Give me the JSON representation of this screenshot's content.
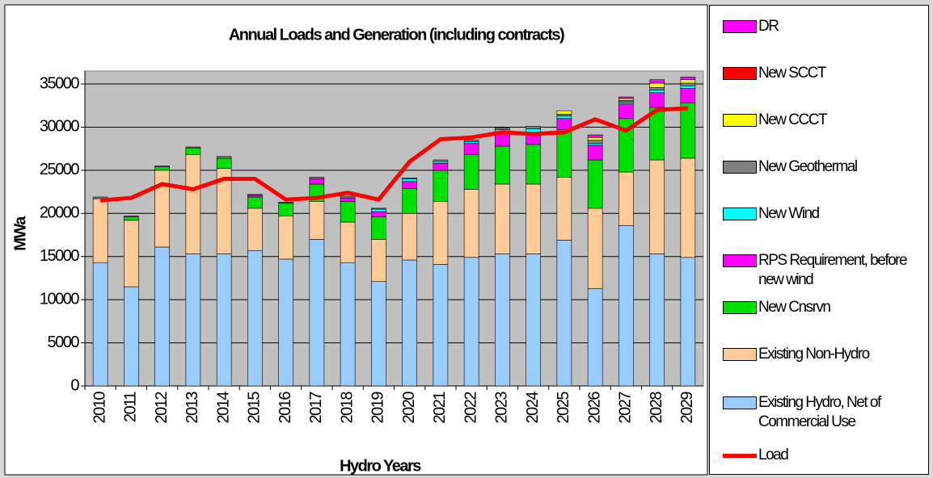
{
  "chart_data": {
    "type": "bar",
    "stacked": true,
    "title": "Annual Loads and Generation (including contracts)",
    "x_label": "Hydro Years",
    "y_label": "MWa",
    "categories": [
      "2010",
      "2011",
      "2012",
      "2013",
      "2014",
      "2015",
      "2016",
      "2017",
      "2018",
      "2019",
      "2020",
      "2021",
      "2022",
      "2023",
      "2024",
      "2025",
      "2026",
      "2027",
      "2028",
      "2029"
    ],
    "ylim": [
      0,
      36500
    ],
    "yticks": [
      0,
      5000,
      10000,
      15000,
      20000,
      25000,
      30000,
      35000
    ],
    "grid": true,
    "series": [
      {
        "name": "Existing Hydro, Net of Commercial Use",
        "color": "#99ccff",
        "kind": "bar",
        "values": [
          14300,
          11500,
          16100,
          15300,
          15300,
          15700,
          14700,
          17000,
          14300,
          12100,
          14600,
          14100,
          14900,
          15300,
          15300,
          16900,
          11300,
          18600,
          15300,
          14900
        ]
      },
      {
        "name": "Existing Non-Hydro",
        "color": "#ffcc99",
        "kind": "bar",
        "values": [
          7400,
          7700,
          8900,
          11500,
          9900,
          4900,
          5000,
          4400,
          4700,
          4900,
          5400,
          7300,
          7900,
          8100,
          8100,
          7300,
          9300,
          6200,
          10900,
          11500
        ]
      },
      {
        "name": "New Cnsrvn",
        "color": "#00e000",
        "kind": "bar",
        "values": [
          0,
          400,
          400,
          800,
          1200,
          1300,
          1500,
          2000,
          2400,
          2600,
          2900,
          3600,
          4000,
          4400,
          4600,
          5500,
          5600,
          6200,
          6100,
          6400
        ]
      },
      {
        "name": "RPS Requirement, before new wind",
        "color": "#ff00ff",
        "kind": "bar",
        "values": [
          0,
          0,
          0,
          0,
          0,
          200,
          0,
          600,
          400,
          600,
          800,
          800,
          1300,
          1700,
          1300,
          1300,
          1700,
          1700,
          1700,
          1700
        ]
      },
      {
        "name": "New Wind",
        "color": "#00ffff",
        "kind": "bar",
        "values": [
          0,
          0,
          0,
          0,
          0,
          0,
          0,
          0,
          0,
          300,
          300,
          200,
          200,
          200,
          500,
          300,
          200,
          200,
          300,
          300
        ]
      },
      {
        "name": "New Geothermal",
        "color": "#808080",
        "kind": "bar",
        "values": [
          200,
          100,
          100,
          100,
          200,
          100,
          100,
          200,
          200,
          100,
          100,
          200,
          200,
          200,
          300,
          200,
          400,
          200,
          300,
          300
        ]
      },
      {
        "name": "New CCCT",
        "color": "#ffff00",
        "kind": "bar",
        "values": [
          0,
          0,
          0,
          0,
          0,
          0,
          0,
          0,
          0,
          0,
          0,
          0,
          0,
          0,
          0,
          400,
          300,
          200,
          500,
          400
        ]
      },
      {
        "name": "New SCCT",
        "color": "#ff0000",
        "kind": "bar",
        "values": [
          0,
          0,
          0,
          0,
          0,
          0,
          0,
          0,
          0,
          0,
          0,
          0,
          0,
          0,
          0,
          0,
          0,
          0,
          0,
          0
        ]
      },
      {
        "name": "DR",
        "color": "#ff00ff",
        "kind": "bar",
        "values": [
          0,
          0,
          0,
          0,
          0,
          0,
          0,
          0,
          0,
          0,
          0,
          0,
          0,
          0,
          0,
          0,
          300,
          200,
          400,
          300
        ]
      },
      {
        "name": "Load",
        "color": "#ff0000",
        "kind": "line",
        "values": [
          21500,
          21800,
          23400,
          22800,
          24000,
          24000,
          21600,
          21800,
          22400,
          21600,
          26000,
          28600,
          28800,
          29400,
          29200,
          29400,
          30900,
          29600,
          32000,
          32200
        ]
      }
    ]
  }
}
